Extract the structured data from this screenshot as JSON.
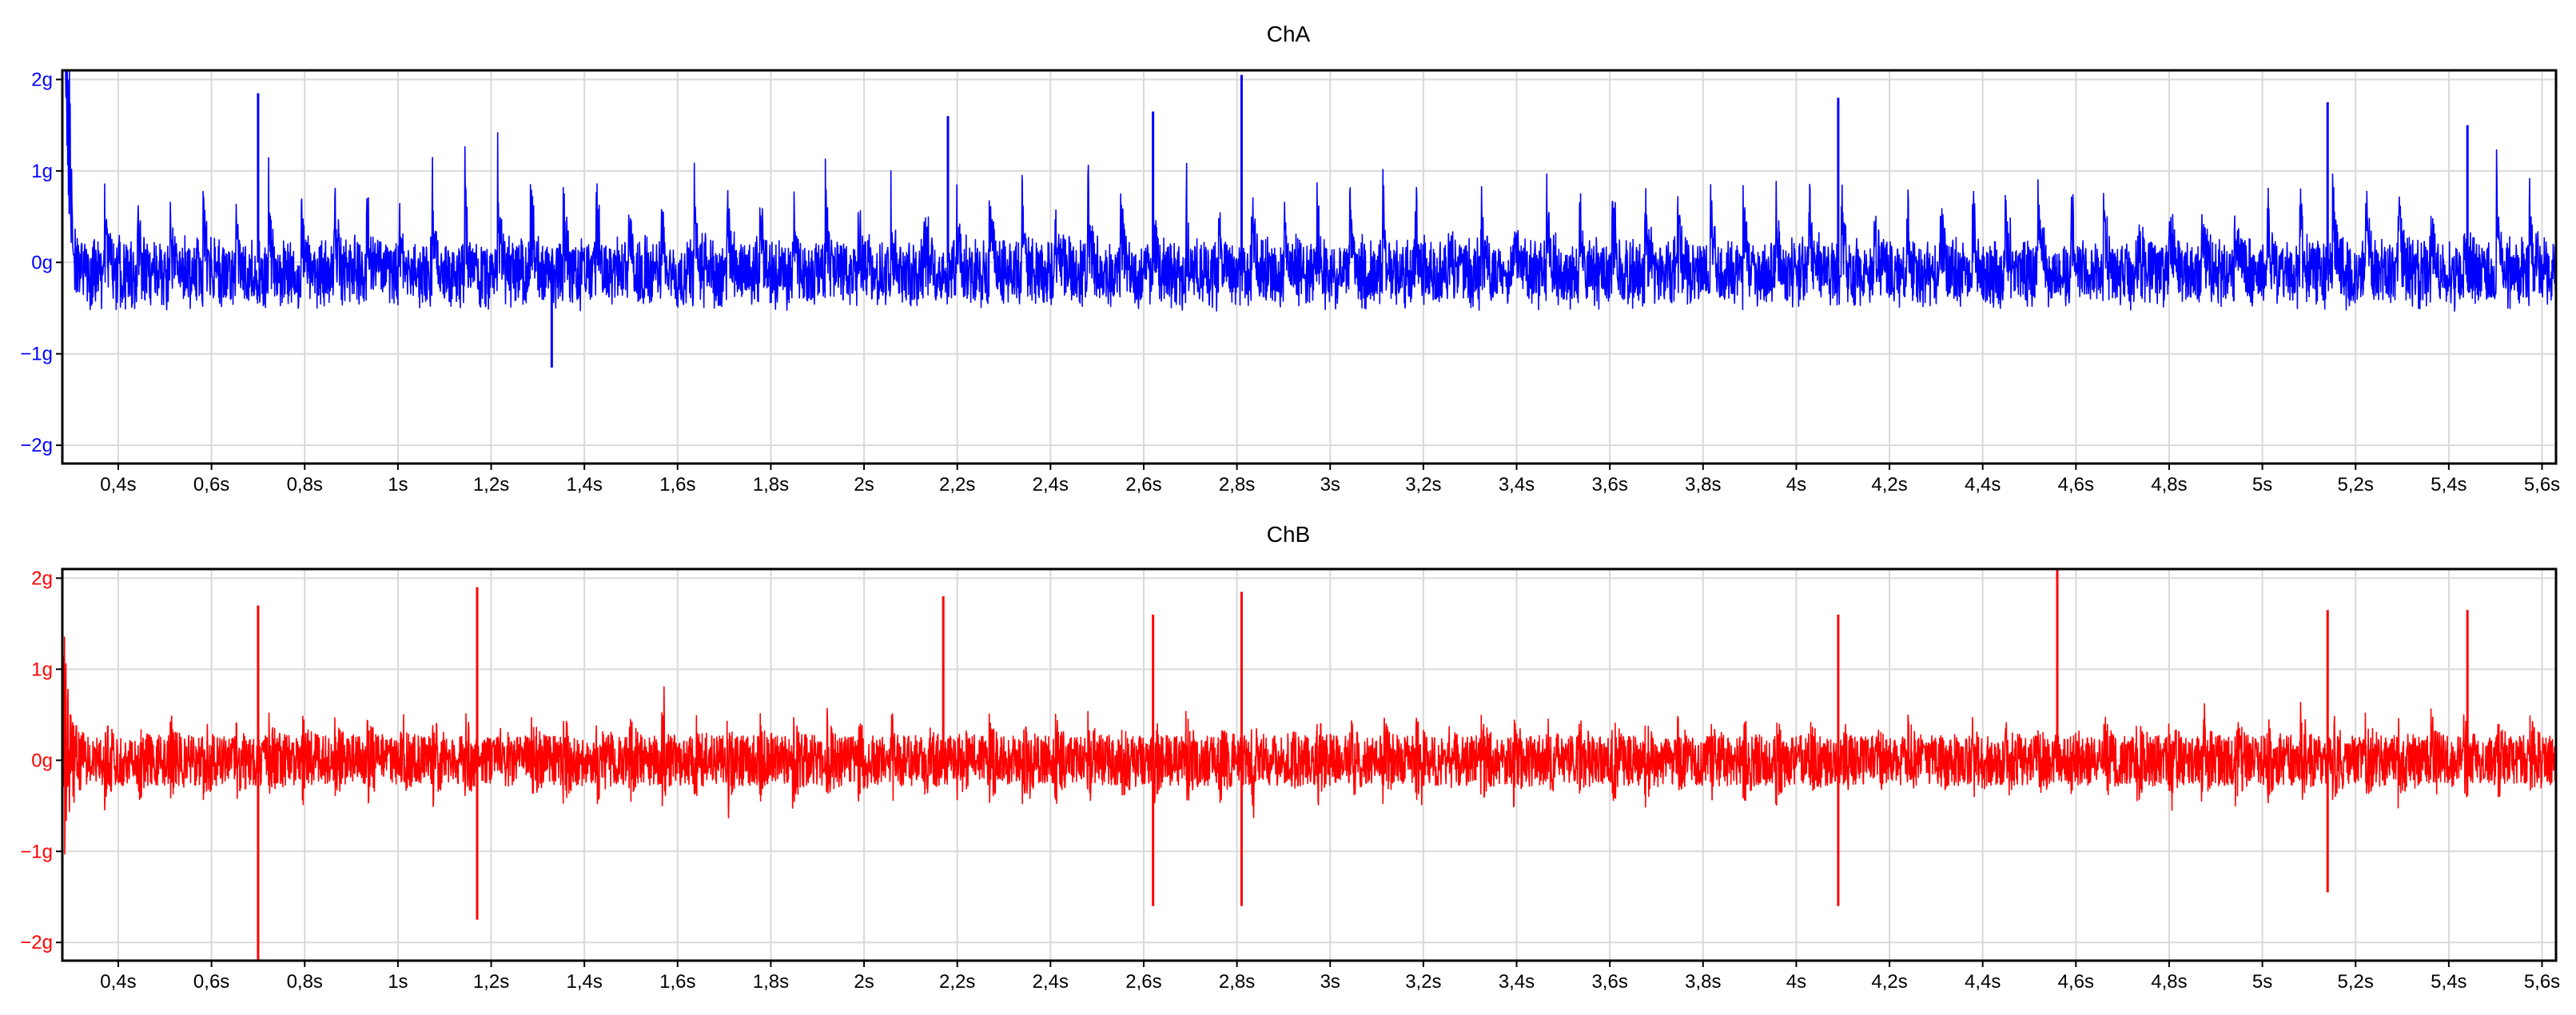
{
  "chart_data": [
    {
      "type": "line",
      "title": "ChA",
      "color": "#0000ff",
      "xlabel": "",
      "ylabel": "",
      "xlim": [
        0.28,
        5.63
      ],
      "ylim": [
        -2.2,
        2.1
      ],
      "grid": true,
      "x_tick_values": [
        0.4,
        0.6,
        0.8,
        1.0,
        1.2,
        1.4,
        1.6,
        1.8,
        2.0,
        2.2,
        2.4,
        2.6,
        2.8,
        3.0,
        3.2,
        3.4,
        3.6,
        3.8,
        4.0,
        4.2,
        4.4,
        4.6,
        4.8,
        5.0,
        5.2,
        5.4,
        5.6
      ],
      "x_tick_labels": [
        "0,4s",
        "0,6s",
        "0,8s",
        "1s",
        "1,2s",
        "1,4s",
        "1,6s",
        "1,8s",
        "2s",
        "2,2s",
        "2,4s",
        "2,6s",
        "2,8s",
        "3s",
        "3,2s",
        "3,4s",
        "3,6s",
        "3,8s",
        "4s",
        "4,2s",
        "4,4s",
        "4,6s",
        "4,8s",
        "5s",
        "5,2s",
        "5,4s",
        "5,6s"
      ],
      "y_tick_values": [
        2,
        1,
        0,
        -1,
        -2
      ],
      "y_tick_labels": [
        "2g",
        "1g",
        "0g",
        "−1g",
        "−2g"
      ],
      "series": [
        {
          "pulse_period_s": 0.0703,
          "baseline_g": [
            -0.6,
            0.35
          ],
          "peaks": [
            {
              "x": 0.7,
              "y": 1.85
            },
            {
              "x": 1.33,
              "y": -1.15
            },
            {
              "x": 2.18,
              "y": 1.6
            },
            {
              "x": 2.62,
              "y": 1.65
            },
            {
              "x": 2.81,
              "y": 2.05
            },
            {
              "x": 4.09,
              "y": 1.8
            },
            {
              "x": 5.14,
              "y": 1.75
            },
            {
              "x": 5.44,
              "y": 1.5
            }
          ]
        }
      ]
    },
    {
      "type": "line",
      "title": "ChB",
      "color": "#ff0000",
      "xlabel": "",
      "ylabel": "",
      "xlim": [
        0.28,
        5.63
      ],
      "ylim": [
        -2.2,
        2.1
      ],
      "grid": true,
      "x_tick_values": [
        0.4,
        0.6,
        0.8,
        1.0,
        1.2,
        1.4,
        1.6,
        1.8,
        2.0,
        2.2,
        2.4,
        2.6,
        2.8,
        3.0,
        3.2,
        3.4,
        3.6,
        3.8,
        4.0,
        4.2,
        4.4,
        4.6,
        4.8,
        5.0,
        5.2,
        5.4,
        5.6
      ],
      "x_tick_labels": [
        "0,4s",
        "0,6s",
        "0,8s",
        "1s",
        "1,2s",
        "1,4s",
        "1,6s",
        "1,8s",
        "2s",
        "2,2s",
        "2,4s",
        "2,6s",
        "2,8s",
        "3s",
        "3,2s",
        "3,4s",
        "3,6s",
        "3,8s",
        "4s",
        "4,2s",
        "4,4s",
        "4,6s",
        "4,8s",
        "5s",
        "5,2s",
        "5,4s",
        "5,6s"
      ],
      "y_tick_values": [
        2,
        1,
        0,
        -1,
        -2
      ],
      "y_tick_labels": [
        "2g",
        "1g",
        "0g",
        "−1g",
        "−2g"
      ],
      "series": [
        {
          "pulse_period_s": 0.0703,
          "baseline_g": [
            -0.6,
            0.6
          ],
          "peaks": [
            {
              "x": 0.7,
              "y": -2.2
            },
            {
              "x": 0.7,
              "y": 1.7
            },
            {
              "x": 1.17,
              "y": 1.9
            },
            {
              "x": 1.17,
              "y": -1.75
            },
            {
              "x": 2.17,
              "y": 1.8
            },
            {
              "x": 2.62,
              "y": 1.6
            },
            {
              "x": 2.62,
              "y": -1.6
            },
            {
              "x": 2.81,
              "y": 1.85
            },
            {
              "x": 2.81,
              "y": -1.6
            },
            {
              "x": 4.09,
              "y": 1.6
            },
            {
              "x": 4.09,
              "y": -1.6
            },
            {
              "x": 4.56,
              "y": 2.1
            },
            {
              "x": 5.14,
              "y": 1.65
            },
            {
              "x": 5.14,
              "y": -1.45
            },
            {
              "x": 5.44,
              "y": 1.65
            }
          ]
        }
      ]
    }
  ]
}
